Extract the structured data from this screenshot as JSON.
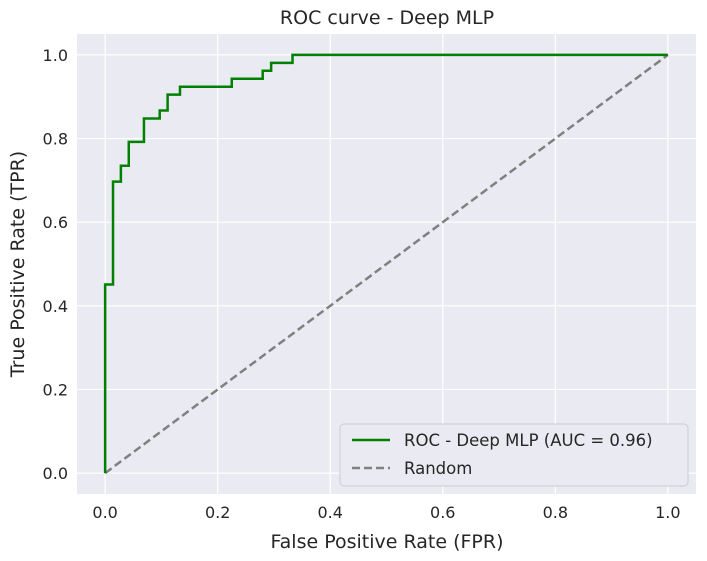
{
  "chart_data": {
    "type": "line",
    "title": "ROC curve - Deep MLP",
    "xlabel": "False Positive Rate (FPR)",
    "ylabel": "True Positive Rate (TPR)",
    "xlim": [
      -0.05,
      1.05
    ],
    "ylim": [
      -0.05,
      1.05
    ],
    "xticks": [
      0.0,
      0.2,
      0.4,
      0.6,
      0.8,
      1.0
    ],
    "yticks": [
      0.0,
      0.2,
      0.4,
      0.6,
      0.8,
      1.0
    ],
    "xtick_labels": [
      "0.0",
      "0.2",
      "0.4",
      "0.6",
      "0.8",
      "1.0"
    ],
    "ytick_labels": [
      "0.0",
      "0.2",
      "0.4",
      "0.6",
      "0.8",
      "1.0"
    ],
    "grid": true,
    "legend_position": "bottom-right",
    "series": [
      {
        "name": "ROC - Deep MLP (AUC = 0.96)",
        "color": "#008000",
        "style": "solid",
        "x": [
          0.0,
          0.0,
          0.014,
          0.014,
          0.028,
          0.028,
          0.042,
          0.042,
          0.069,
          0.069,
          0.097,
          0.097,
          0.111,
          0.111,
          0.133,
          0.133,
          0.225,
          0.225,
          0.28,
          0.28,
          0.295,
          0.295,
          0.333,
          0.333,
          1.0
        ],
        "y": [
          0.0,
          0.451,
          0.451,
          0.697,
          0.697,
          0.735,
          0.735,
          0.792,
          0.792,
          0.848,
          0.848,
          0.867,
          0.867,
          0.905,
          0.905,
          0.924,
          0.924,
          0.943,
          0.943,
          0.962,
          0.962,
          0.981,
          0.981,
          1.0,
          1.0
        ]
      },
      {
        "name": "Random",
        "color": "#808080",
        "style": "dashed",
        "x": [
          0.0,
          1.0
        ],
        "y": [
          0.0,
          1.0
        ]
      }
    ]
  }
}
